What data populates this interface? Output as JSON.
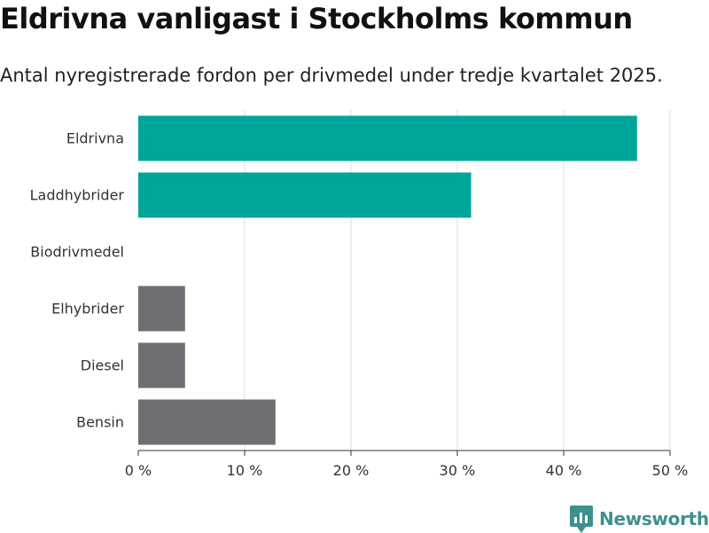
{
  "header": {
    "title": "Eldrivna vanligast i Stockholms kommun",
    "subtitle": "Antal nyregistrerade fordon per drivmedel under tredje kvartalet 2025."
  },
  "brand": {
    "name": "Newsworthy",
    "logo_icon": "newsworthy-logo-icon",
    "color": "#3f8f8f"
  },
  "chart_data": {
    "type": "bar",
    "orientation": "horizontal",
    "title": "Eldrivna vanligast i Stockholms kommun",
    "subtitle": "Antal nyregistrerade fordon per drivmedel under tredje kvartalet 2025.",
    "xlabel": "",
    "ylabel": "",
    "unit": "%",
    "categories": [
      "Eldrivna",
      "Laddhybrider",
      "Biodrivmedel",
      "Elhybrider",
      "Diesel",
      "Bensin"
    ],
    "values": [
      46.9,
      31.3,
      0,
      4.4,
      4.4,
      12.9
    ],
    "colors": [
      "#00a59a",
      "#00a59a",
      "#6e6e73",
      "#6e6e73",
      "#6e6e73",
      "#6e6e73"
    ],
    "xlim": [
      0,
      50
    ],
    "ticks": [
      0,
      10,
      20,
      30,
      40,
      50
    ],
    "tick_labels": [
      "0 %",
      "10 %",
      "20 %",
      "30 %",
      "40 %",
      "50 %"
    ],
    "grid": true,
    "legend": "none"
  }
}
